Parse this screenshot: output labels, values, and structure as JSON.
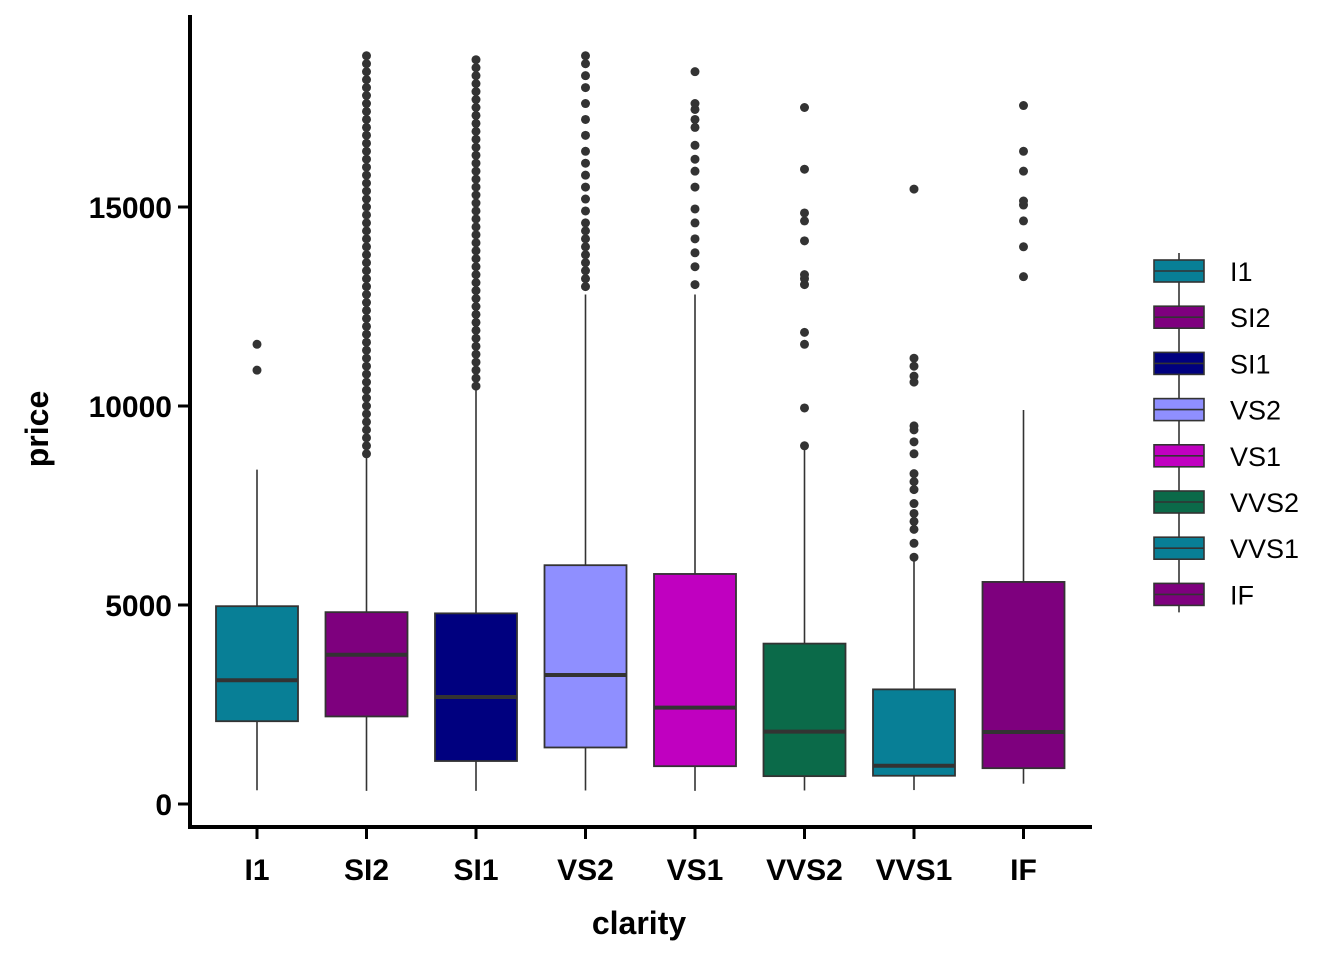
{
  "chart_data": {
    "type": "box",
    "title": "",
    "xlabel": "clarity",
    "ylabel": "price",
    "ylim": [
      -750,
      19500
    ],
    "yticks": [
      0,
      5000,
      10000,
      15000
    ],
    "grid": false,
    "legend_position": "right",
    "categories": [
      "I1",
      "SI2",
      "SI1",
      "VS2",
      "VS1",
      "VVS2",
      "VVS1",
      "IF"
    ],
    "boxes": [
      {
        "name": "I1",
        "color": "#087F96",
        "whisker_low": 345,
        "q1": 2080,
        "median": 3110,
        "q3": 4970,
        "whisker_high": 8400,
        "outliers": [
          10900,
          11550
        ]
      },
      {
        "name": "SI2",
        "color": "#7E007E",
        "whisker_low": 330,
        "q1": 2200,
        "median": 3750,
        "q3": 4820,
        "whisker_high": 8750,
        "outliers": [
          8800,
          9000,
          9200,
          9400,
          9600,
          9800,
          10000,
          10200,
          10400,
          10600,
          10800,
          11000,
          11200,
          11400,
          11600,
          11800,
          12000,
          12200,
          12400,
          12600,
          12800,
          13000,
          13200,
          13400,
          13600,
          13800,
          14000,
          14200,
          14400,
          14600,
          14800,
          15000,
          15200,
          15400,
          15600,
          15800,
          16000,
          16200,
          16400,
          16600,
          16800,
          17000,
          17200,
          17400,
          17600,
          17800,
          18000,
          18200,
          18400,
          18600,
          18800
        ]
      },
      {
        "name": "SI1",
        "color": "#00007F",
        "whisker_low": 330,
        "q1": 1080,
        "median": 2690,
        "q3": 4790,
        "whisker_high": 10400,
        "outliers": [
          10500,
          10700,
          10900,
          11100,
          11300,
          11500,
          11700,
          11900,
          12100,
          12300,
          12500,
          12700,
          12900,
          13100,
          13300,
          13500,
          13700,
          13900,
          14100,
          14300,
          14500,
          14700,
          14900,
          15100,
          15300,
          15500,
          15700,
          15900,
          16100,
          16300,
          16500,
          16700,
          16900,
          17100,
          17300,
          17500,
          17700,
          17900,
          18100,
          18300,
          18500,
          18700
        ]
      },
      {
        "name": "VS2",
        "color": "#8F8FFF",
        "whisker_low": 340,
        "q1": 1420,
        "median": 3240,
        "q3": 6000,
        "whisker_high": 12800,
        "outliers": [
          13000,
          13200,
          13400,
          13600,
          13800,
          14000,
          14200,
          14400,
          14600,
          14900,
          15200,
          15500,
          15800,
          16100,
          16400,
          16800,
          17200,
          17600,
          18000,
          18300,
          18600,
          18800
        ]
      },
      {
        "name": "VS1",
        "color": "#C000C0",
        "whisker_low": 330,
        "q1": 950,
        "median": 2420,
        "q3": 5780,
        "whisker_high": 12800,
        "outliers": [
          13050,
          13500,
          13850,
          14200,
          14600,
          14950,
          15500,
          15900,
          16200,
          16550,
          17000,
          17200,
          17450,
          17600,
          18400
        ]
      },
      {
        "name": "VVS2",
        "color": "#0B6A49",
        "whisker_low": 340,
        "q1": 700,
        "median": 1820,
        "q3": 4030,
        "whisker_high": 8950,
        "outliers": [
          9000,
          9950,
          11550,
          11850,
          13050,
          13200,
          13300,
          14150,
          14650,
          14850,
          15950,
          17500
        ]
      },
      {
        "name": "VVS1",
        "color": "#087F96",
        "whisker_low": 350,
        "q1": 710,
        "median": 960,
        "q3": 2880,
        "whisker_high": 6100,
        "outliers": [
          6200,
          6550,
          6900,
          7100,
          7300,
          7550,
          7900,
          8100,
          8300,
          8800,
          9100,
          9400,
          9500,
          10600,
          10750,
          11000,
          11200,
          15450
        ]
      },
      {
        "name": "IF",
        "color": "#7E007E",
        "whisker_low": 510,
        "q1": 900,
        "median": 1810,
        "q3": 5580,
        "whisker_high": 9900,
        "outliers": [
          13250,
          14000,
          14650,
          15050,
          15150,
          15900,
          16400,
          17550
        ]
      }
    ]
  }
}
